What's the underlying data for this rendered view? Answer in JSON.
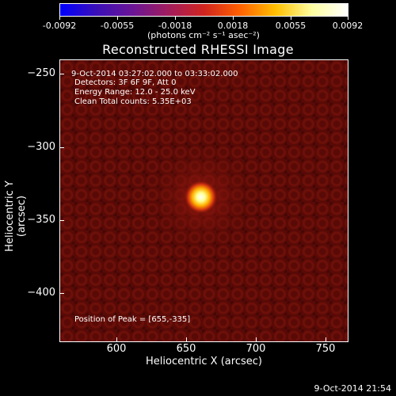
{
  "colorbar": {
    "tick_labels": [
      "-0.0092",
      "-0.0055",
      "-0.0018",
      "0.0018",
      "0.0055",
      "0.0092"
    ],
    "units": "(photons cm⁻² s⁻¹ asec⁻²)",
    "stops": [
      "#0000ff",
      "#3a0fb8",
      "#6a1596",
      "#a01c5e",
      "#d0241f",
      "#ff6000",
      "#ffc000",
      "#ffffa0",
      "#ffffff"
    ]
  },
  "title": "Reconstructed RHESSI Image",
  "annotations": {
    "time_range": "9-Oct-2014 03:27:02.000 to 03:33:02.000",
    "detectors": "Detectors: 3F 6F 9F, Att 0",
    "energy": "Energy Range: 12.0 - 25.0 keV",
    "clean": "Clean    Total counts: 5.35E+03",
    "peak": "Position of Peak = [655,-335]"
  },
  "axes": {
    "xlabel": "Heliocentric X (arcsec)",
    "ylabel": "Heliocentric Y (arcsec)",
    "x_ticks": [
      "600",
      "650",
      "700",
      "750"
    ],
    "y_ticks": [
      "−250",
      "−300",
      "−350",
      "−400"
    ],
    "xlim": [
      562,
      752
    ],
    "ylim": [
      -432,
      -243
    ],
    "source_x": 655,
    "source_y": -335
  },
  "footer": "9-Oct-2014 21:54",
  "background_color": "#5a0a06"
}
